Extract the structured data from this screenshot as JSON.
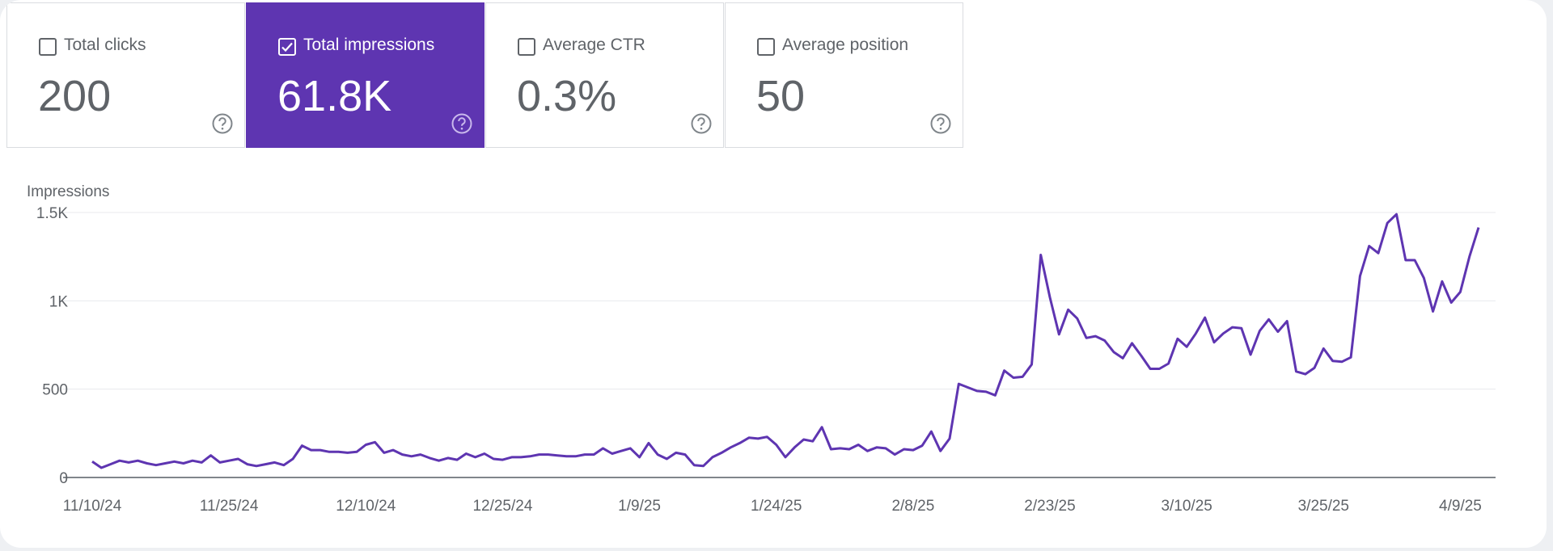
{
  "cards": [
    {
      "label": "Total clicks",
      "value": "200",
      "checked": false
    },
    {
      "label": "Total impressions",
      "value": "61.8K",
      "checked": true
    },
    {
      "label": "Average CTR",
      "value": "0.3%",
      "checked": false
    },
    {
      "label": "Average position",
      "value": "50",
      "checked": false
    }
  ],
  "chart_data": {
    "type": "line",
    "y_label": "Impressions",
    "color": "#5e35b1",
    "grid": true,
    "ylim": [
      0,
      1500
    ],
    "yticks": [
      0,
      500,
      {
        "value": 1000,
        "label": "1K"
      },
      {
        "value": 1500,
        "label": "1.5K"
      }
    ],
    "categories": [
      "11/10/24",
      null,
      null,
      null,
      null,
      null,
      null,
      null,
      null,
      null,
      null,
      null,
      null,
      null,
      null,
      "11/25/24",
      null,
      null,
      null,
      null,
      null,
      null,
      null,
      null,
      null,
      null,
      null,
      null,
      null,
      null,
      "12/10/24",
      null,
      null,
      null,
      null,
      null,
      null,
      null,
      null,
      null,
      null,
      null,
      null,
      null,
      null,
      "12/25/24",
      null,
      null,
      null,
      null,
      null,
      null,
      null,
      null,
      null,
      null,
      null,
      null,
      null,
      null,
      "1/9/25",
      null,
      null,
      null,
      null,
      null,
      null,
      null,
      null,
      null,
      null,
      null,
      null,
      null,
      null,
      "1/24/25",
      null,
      null,
      null,
      null,
      null,
      null,
      null,
      null,
      null,
      null,
      null,
      null,
      null,
      null,
      "2/8/25",
      null,
      null,
      null,
      null,
      null,
      null,
      null,
      null,
      null,
      null,
      null,
      null,
      null,
      null,
      "2/23/25",
      null,
      null,
      null,
      null,
      null,
      null,
      null,
      null,
      null,
      null,
      null,
      null,
      null,
      null,
      "3/10/25",
      null,
      null,
      null,
      null,
      null,
      null,
      null,
      null,
      null,
      null,
      null,
      null,
      null,
      null,
      "3/25/25",
      null,
      null,
      null,
      null,
      null,
      null,
      null,
      null,
      null,
      null,
      null,
      null,
      null,
      null,
      "4/9/25",
      null,
      null
    ],
    "values": [
      90,
      55,
      75,
      95,
      85,
      95,
      80,
      70,
      80,
      90,
      80,
      95,
      85,
      125,
      85,
      95,
      105,
      75,
      65,
      75,
      85,
      70,
      105,
      180,
      155,
      155,
      145,
      145,
      140,
      145,
      185,
      200,
      140,
      155,
      130,
      120,
      130,
      110,
      95,
      110,
      100,
      135,
      115,
      135,
      105,
      100,
      115,
      115,
      120,
      130,
      130,
      125,
      120,
      120,
      130,
      130,
      165,
      135,
      150,
      165,
      115,
      195,
      130,
      105,
      140,
      130,
      70,
      65,
      115,
      140,
      170,
      195,
      225,
      220,
      230,
      185,
      115,
      170,
      215,
      205,
      285,
      160,
      165,
      160,
      185,
      150,
      170,
      165,
      130,
      160,
      155,
      180,
      260,
      150,
      220,
      530,
      510,
      490,
      485,
      465,
      605,
      565,
      570,
      640,
      1260,
      1020,
      810,
      950,
      900,
      790,
      800,
      775,
      710,
      675,
      760,
      690,
      615,
      615,
      645,
      785,
      740,
      815,
      905,
      765,
      815,
      850,
      845,
      695,
      830,
      895,
      825,
      885,
      600,
      585,
      620,
      730,
      660,
      655,
      680,
      1140,
      1310,
      1270,
      1440,
      1490,
      1230,
      1230,
      1130,
      940,
      1110,
      990,
      1050,
      1250,
      1415
    ]
  }
}
